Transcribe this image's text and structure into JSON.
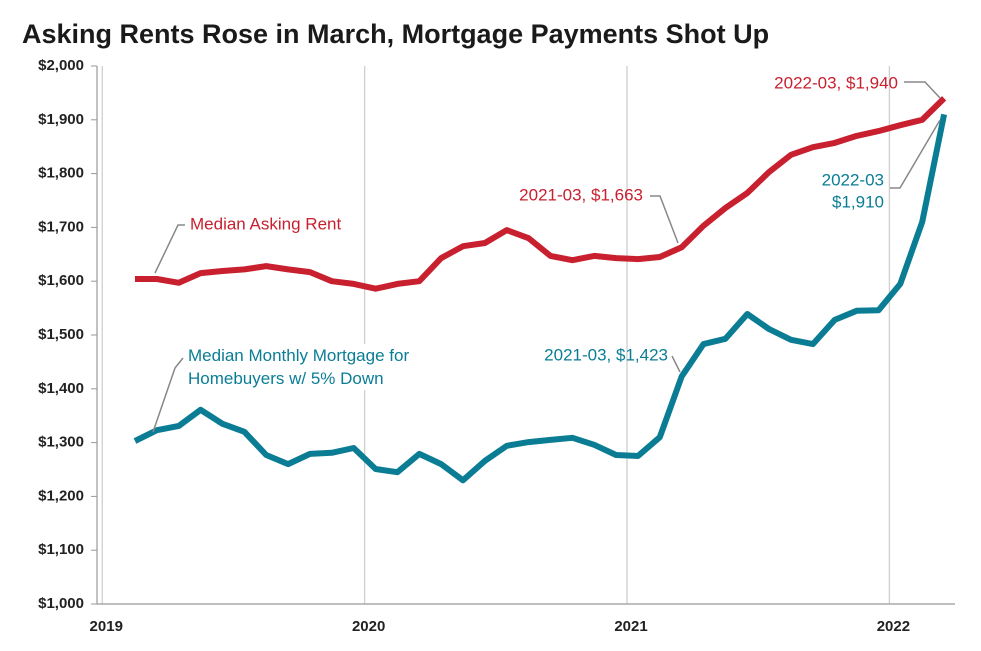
{
  "chart_data": {
    "type": "line",
    "title": "Asking Rents Rose in March, Mortgage Payments Shot Up",
    "x": [
      "2019-02",
      "2019-03",
      "2019-04",
      "2019-05",
      "2019-06",
      "2019-07",
      "2019-08",
      "2019-09",
      "2019-10",
      "2019-11",
      "2019-12",
      "2020-01",
      "2020-02",
      "2020-03",
      "2020-04",
      "2020-05",
      "2020-06",
      "2020-07",
      "2020-08",
      "2020-09",
      "2020-10",
      "2020-11",
      "2020-12",
      "2021-01",
      "2021-02",
      "2021-03",
      "2021-04",
      "2021-05",
      "2021-06",
      "2021-07",
      "2021-08",
      "2021-09",
      "2021-10",
      "2021-11",
      "2021-12",
      "2022-01",
      "2022-02",
      "2022-03"
    ],
    "series": [
      {
        "name": "Median Asking Rent",
        "color": "#c8202f",
        "values": [
          1604,
          1604,
          1597,
          1615,
          1619,
          1622,
          1628,
          1622,
          1617,
          1600,
          1595,
          1586,
          1595,
          1600,
          1643,
          1665,
          1671,
          1695,
          1680,
          1647,
          1639,
          1647,
          1643,
          1641,
          1645,
          1663,
          1703,
          1736,
          1764,
          1803,
          1835,
          1849,
          1857,
          1870,
          1879,
          1890,
          1900,
          1940
        ]
      },
      {
        "name": "Median Monthly Mortgage for Homebuyers w/ 5% Down",
        "color": "#0a7d95",
        "values": [
          1303,
          1323,
          1331,
          1361,
          1335,
          1320,
          1277,
          1260,
          1279,
          1281,
          1290,
          1251,
          1245,
          1279,
          1260,
          1230,
          1266,
          1294,
          1301,
          1305,
          1309,
          1296,
          1277,
          1275,
          1310,
          1423,
          1483,
          1493,
          1539,
          1511,
          1491,
          1483,
          1528,
          1545,
          1546,
          1595,
          1710,
          1910
        ]
      }
    ],
    "annotations": [
      {
        "lines": [
          "2022-03, $1,940"
        ]
      },
      {
        "lines": [
          "2021-03, $1,663"
        ]
      },
      {
        "lines": [
          "2021-03, $1,423"
        ]
      },
      {
        "lines": [
          "2022-03",
          "$1,910"
        ]
      }
    ],
    "xlim": [
      2018.98,
      2022.25
    ],
    "xticks": [
      2019,
      2020,
      2021,
      2022
    ],
    "ylim": [
      1000,
      2000
    ],
    "yticks": [
      {
        "value": 1000,
        "label": "$1,000"
      },
      {
        "value": 1100,
        "label": "$1,100"
      },
      {
        "value": 1200,
        "label": "$1,200"
      },
      {
        "value": 1300,
        "label": "$1,300"
      },
      {
        "value": 1400,
        "label": "$1,400"
      },
      {
        "value": 1500,
        "label": "$1,500"
      },
      {
        "value": 1600,
        "label": "$1,600"
      },
      {
        "value": 1700,
        "label": "$1,700"
      },
      {
        "value": 1800,
        "label": "$1,800"
      },
      {
        "value": 1900,
        "label": "$1,900"
      },
      {
        "value": 2000,
        "label": "$2,000"
      }
    ],
    "grid": "x"
  }
}
